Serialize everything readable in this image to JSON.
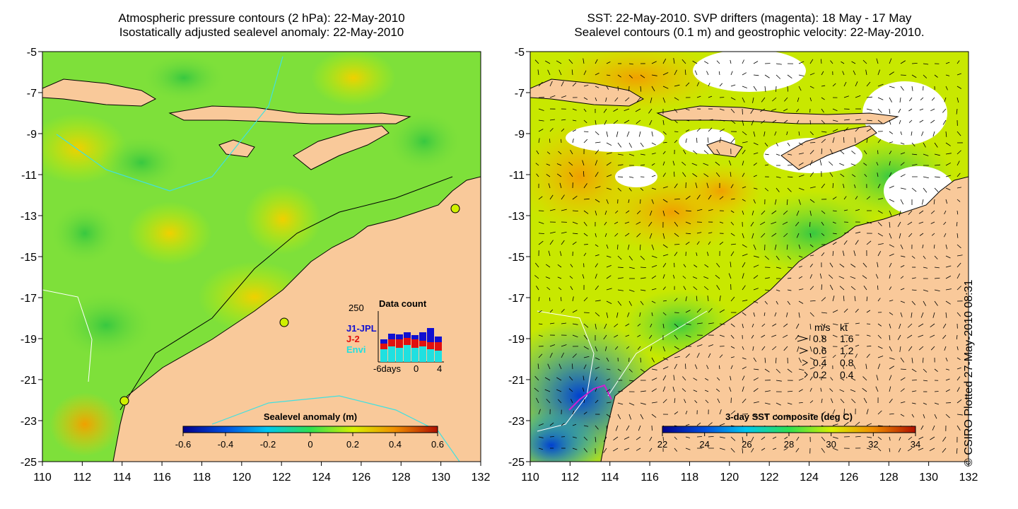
{
  "left_panel": {
    "title_line1": "Atmospheric pressure contours (2 hPa): 22-May-2010",
    "title_line2": "Isostatically adjusted sealevel anomaly: 22-May-2010",
    "colorbar_title": "Sealevel anomaly (m)",
    "colorbar_ticks": [
      "-0.6",
      "-0.4",
      "-0.2",
      "0",
      "0.2",
      "0.4",
      "0.6"
    ],
    "inset": {
      "title": "Data count",
      "ymax_label": "250",
      "series": [
        "J1-JPL",
        "J-2",
        "Envi"
      ],
      "series_colors": [
        "#1010d0",
        "#e01010",
        "#20e0e0"
      ],
      "x_labels": [
        "-6days",
        "0",
        "4"
      ]
    }
  },
  "right_panel": {
    "title_line1": "SST: 22-May-2010. SVP drifters (magenta): 18 May - 17 May",
    "title_line2": "Sealevel contours (0.1 m) and geostrophic velocity: 22-May-2010.",
    "colorbar_title": "3-day SST composite (deg C)",
    "colorbar_ticks": [
      "22",
      "24",
      "26",
      "28",
      "30",
      "32",
      "34"
    ],
    "velocity_legend": {
      "header_ms": "m/s",
      "header_kt": "kt",
      "rows": [
        {
          "ms": "0.8",
          "kt": "1.6"
        },
        {
          "ms": "0.6",
          "kt": "1.2"
        },
        {
          "ms": "0.4",
          "kt": "0.8"
        },
        {
          "ms": "0.2",
          "kt": "0.4"
        }
      ]
    }
  },
  "axes": {
    "lon_ticks": [
      "110",
      "112",
      "114",
      "116",
      "118",
      "120",
      "122",
      "124",
      "126",
      "128",
      "130",
      "132"
    ],
    "lat_ticks": [
      "-5",
      "-7",
      "-9",
      "-11",
      "-13",
      "-15",
      "-17",
      "-19",
      "-21",
      "-23",
      "-25"
    ]
  },
  "credit": "© CSIRO Plotted 27-May-2010 08:31",
  "colors": {
    "land": "#f9c99a",
    "ocean_green": "#7ee03a",
    "ocean_yellowgreen": "#c4f000",
    "sst_orange": "#f2b800",
    "sst_blue": "#00a8e8"
  }
}
